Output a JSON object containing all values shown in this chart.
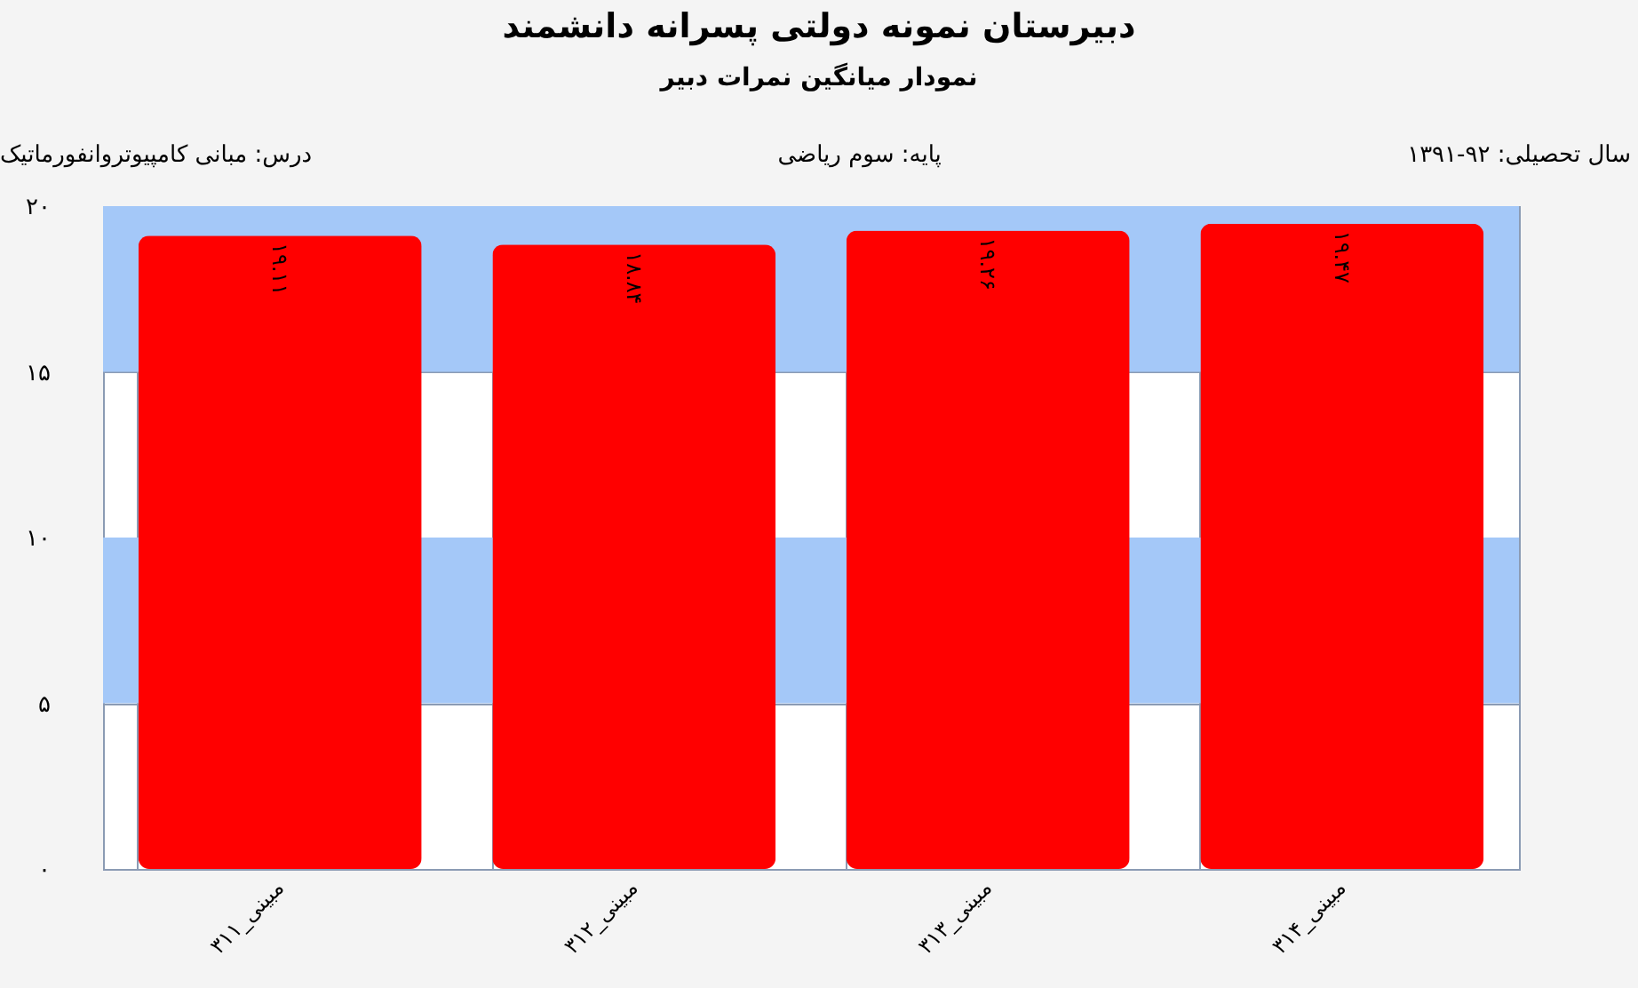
{
  "chart_data": {
    "type": "bar",
    "title": "دبیرستان  نمونه دولتی پسرانه دانشمند",
    "subtitle": "نمودار میانگین نمرات دبیر",
    "annotations": [
      "سال تحصیلی: ۹۲-۱۳۹۱",
      "پایه: سوم ریاضی",
      "درس: مبانی  کامپیوتروانفورماتیک"
    ],
    "categories": [
      "مبینی_۳۱۱",
      "مبینی_۳۱۲",
      "مبینی_۳۱۳",
      "مبینی_۳۱۴"
    ],
    "values": [
      19.11,
      18.84,
      19.26,
      19.47
    ],
    "value_labels": [
      "۱۹.۱۱",
      "۱۸.۸۴",
      "۱۹.۲۶",
      "۱۹.۴۷"
    ],
    "color": "#ff0000",
    "ylim": [
      0,
      20
    ],
    "yticks": [
      {
        "value": 0,
        "label": "۰"
      },
      {
        "value": 5,
        "label": "۵"
      },
      {
        "value": 10,
        "label": "۱۰"
      },
      {
        "value": 15,
        "label": "۱۵"
      },
      {
        "value": 20,
        "label": "۲۰"
      }
    ],
    "bands": [
      {
        "axis": "y",
        "from": 15,
        "to": 20,
        "color": "#a4c8f8"
      },
      {
        "axis": "y",
        "from": 5,
        "to": 10,
        "color": "#a4c8f8"
      }
    ],
    "grid": true
  }
}
